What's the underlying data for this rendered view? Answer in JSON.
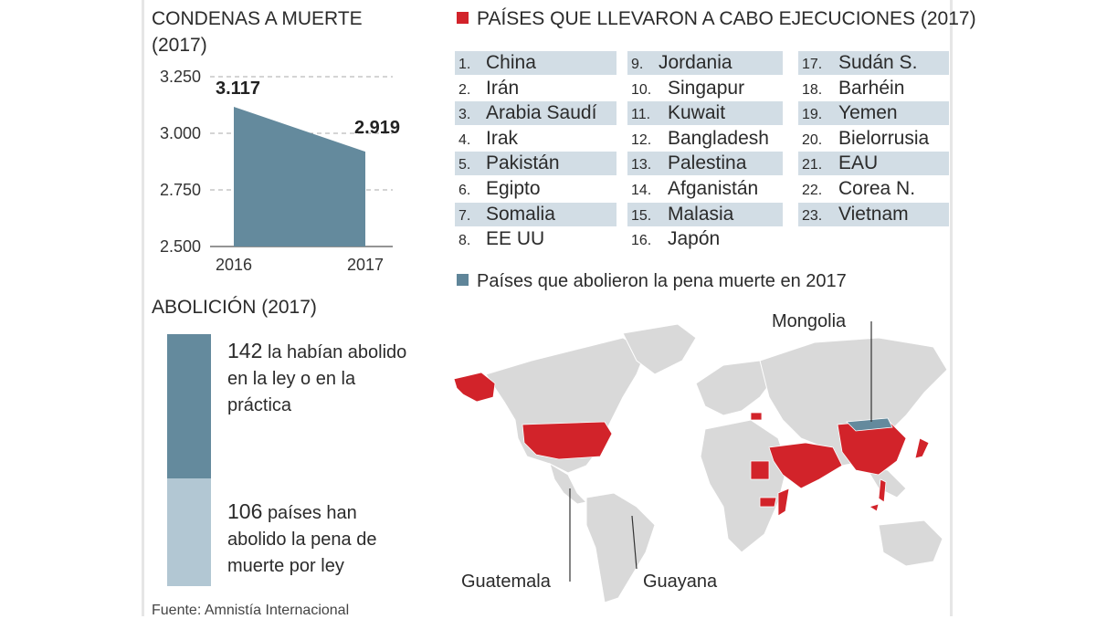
{
  "titles": {
    "condenas": "CONDENAS A MUERTE (2017)",
    "paises": "PAÍSES QUE LLEVARON A CABO EJECUCIONES (2017)",
    "abolicion": "ABOLICIÓN (2017)",
    "legend_blue": "Países que abolieron la pena muerte en 2017"
  },
  "colors": {
    "accent_red": "#d2232a",
    "accent_blue": "#5f8599",
    "light_blue": "#b2c7d3",
    "row_shade": "#d2dde5"
  },
  "chart_data": [
    {
      "type": "area",
      "title": "CONDENAS A MUERTE (2017)",
      "x": [
        "2016",
        "2017"
      ],
      "values": [
        3117,
        2919
      ],
      "value_labels": [
        "3.117",
        "2.919"
      ],
      "ylim": [
        2500,
        3250
      ],
      "yticks": [
        2500,
        2750,
        3000,
        3250
      ],
      "ytick_labels": [
        "2.500",
        "2.750",
        "3.000",
        "3.250"
      ],
      "grid": "dashed horizontal",
      "color": "#648a9d"
    },
    {
      "type": "bar",
      "title": "ABOLICIÓN (2017)",
      "stacked": true,
      "series": [
        {
          "name": "142 la habían abolido en la ley o en la práctica",
          "value": 142
        },
        {
          "name": "106 países han abolido la pena de muerte por ley",
          "value": 106
        }
      ]
    }
  ],
  "abolicion": {
    "top_number": "142",
    "top_text": "la habían abolido en la ley o en la práctica",
    "bottom_number": "106",
    "bottom_text": "países han abolido la pena de muerte por ley"
  },
  "countries": [
    {
      "num": "1.",
      "name": "China"
    },
    {
      "num": "2.",
      "name": "Irán"
    },
    {
      "num": "3.",
      "name": "Arabia Saudí"
    },
    {
      "num": "4.",
      "name": "Irak"
    },
    {
      "num": "5.",
      "name": "Pakistán"
    },
    {
      "num": "6.",
      "name": "Egipto"
    },
    {
      "num": "7.",
      "name": "Somalia"
    },
    {
      "num": "8.",
      "name": "EE UU"
    },
    {
      "num": "9.",
      "name": "Jordania"
    },
    {
      "num": "10.",
      "name": "Singapur"
    },
    {
      "num": "11.",
      "name": "Kuwait"
    },
    {
      "num": "12.",
      "name": "Bangladesh"
    },
    {
      "num": "13.",
      "name": "Palestina"
    },
    {
      "num": "14.",
      "name": "Afganistán"
    },
    {
      "num": "15.",
      "name": "Malasia"
    },
    {
      "num": "16.",
      "name": "Japón"
    },
    {
      "num": "17.",
      "name": "Sudán S."
    },
    {
      "num": "18.",
      "name": "Barhéin"
    },
    {
      "num": "19.",
      "name": "Yemen"
    },
    {
      "num": "20.",
      "name": "Bielorrusia"
    },
    {
      "num": "21.",
      "name": "EAU"
    },
    {
      "num": "22.",
      "name": "Corea N."
    },
    {
      "num": "23.",
      "name": "Vietnam"
    }
  ],
  "map_labels": {
    "mongolia": "Mongolia",
    "guatemala": "Guatemala",
    "guayana": "Guayana"
  },
  "source": "Fuente: Amnistía Internacional"
}
